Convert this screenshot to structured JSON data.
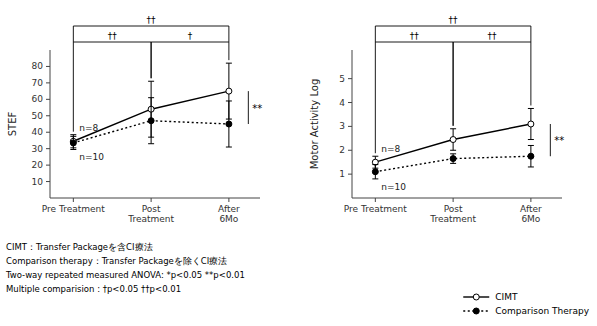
{
  "chart_data": [
    {
      "type": "line",
      "ylabel": "STEF",
      "categories": [
        "Pre Treatment",
        "Post\nTreatment",
        "After\n6Mo"
      ],
      "series": [
        {
          "name": "CIMT",
          "label": "n=8",
          "color": "#000000",
          "marker": "open-circle",
          "line_style": "solid",
          "values": [
            34.5,
            54.0,
            65.0
          ],
          "errors": [
            4.0,
            17.0,
            17.0
          ]
        },
        {
          "name": "Comparison Therapy",
          "label": "n=10",
          "color": "#000000",
          "marker": "filled-circle",
          "line_style": "dotted",
          "values": [
            33.5,
            47.0,
            45.0
          ],
          "errors": [
            4.0,
            14.0,
            14.0
          ]
        }
      ],
      "ylim": [
        0,
        90
      ],
      "yticks": [
        10,
        20,
        30,
        40,
        50,
        60,
        70,
        80
      ],
      "grid": false,
      "annotations": [
        {
          "text": "**",
          "at": 2
        },
        {
          "text": "††",
          "from": 0,
          "to": 1
        },
        {
          "text": "†",
          "from": 1,
          "to": 2
        },
        {
          "text": "††",
          "from": 0,
          "to": 2
        }
      ],
      "legend": "lower right",
      "footnotes": [
        "CIMT：Transfer Packageを含CI療法",
        "Comparison therapy：Transfer Packageを除くCI療法",
        "Two-way repeated measured ANOVA: *p<0.05  **p<0.01",
        "Multiple comparision : †p<0.05  ††p<0.01"
      ]
    },
    {
      "type": "line",
      "ylabel": "Motor Activity Log",
      "categories": [
        "Pre Treatment",
        "Post\nTreatment",
        "After\n6Mo"
      ],
      "series": [
        {
          "label": "n=8",
          "color": "#000000",
          "marker": "open-circle",
          "line_style": "solid",
          "values": [
            1.5,
            2.45,
            3.1
          ],
          "errors": [
            0.25,
            0.45,
            0.65
          ]
        },
        {
          "label": "n=10",
          "color": "#000000",
          "marker": "filled-circle",
          "line_style": "dotted",
          "values": [
            1.1,
            1.65,
            1.75
          ],
          "errors": [
            0.3,
            0.2,
            0.45
          ]
        }
      ],
      "ylim": [
        0,
        6.2
      ],
      "yticks": [
        1,
        2,
        3,
        4,
        5
      ],
      "grid": false,
      "annotations": [
        {
          "text": "**",
          "at": 2
        },
        {
          "text": "††",
          "from": 0,
          "to": 1
        },
        {
          "text": "††",
          "from": 1,
          "to": 2
        },
        {
          "text": "††",
          "from": 0,
          "to": 2
        }
      ]
    }
  ]
}
